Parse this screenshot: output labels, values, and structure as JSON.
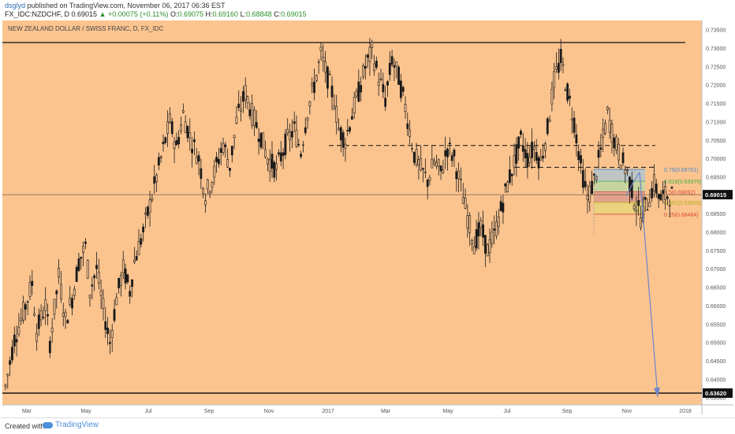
{
  "header": {
    "username": "dsglyd",
    "published_text": " published on TradingView.com, November 06, 2017 06:36 EST",
    "symbol": "FX_IDC:NZDCHF, D",
    "last": "0.69015",
    "change": "+0.00075 (+0.11%)",
    "open_label": "O:",
    "open": "0.69075",
    "high_label": "H:",
    "high": "0.69160",
    "low_label": "L:",
    "low": "0.68848",
    "close_label": "C:",
    "close": "0.69015"
  },
  "footer": {
    "created_label": "Created with",
    "brand": "TradingView"
  },
  "chart_data": {
    "type": "candlestick",
    "title": "NEW ZEALAND DOLLAR / SWISS FRANC, D, FX_IDC",
    "ylim": [
      0.633,
      0.7375
    ],
    "y_ticks": [
      "0.73500",
      "0.73000",
      "0.72500",
      "0.72000",
      "0.71500",
      "0.71000",
      "0.70500",
      "0.70000",
      "0.69500",
      "0.69000",
      "0.68500",
      "0.68000",
      "0.67500",
      "0.67000",
      "0.66500",
      "0.66000",
      "0.65500",
      "0.65000",
      "0.64500",
      "0.64000",
      "0.63500"
    ],
    "x_ticks": [
      "Mar",
      "May",
      "Jul",
      "Sep",
      "Nov",
      "2017",
      "Mar",
      "May",
      "Jul",
      "Sep",
      "Nov",
      "2018"
    ],
    "price_path": [
      [
        0,
        0.638
      ],
      [
        4,
        0.651
      ],
      [
        8,
        0.658
      ],
      [
        12,
        0.666
      ],
      [
        14,
        0.653
      ],
      [
        18,
        0.66
      ],
      [
        20,
        0.65
      ],
      [
        24,
        0.668
      ],
      [
        27,
        0.656
      ],
      [
        30,
        0.662
      ],
      [
        33,
        0.672
      ],
      [
        36,
        0.676
      ],
      [
        38,
        0.664
      ],
      [
        41,
        0.67
      ],
      [
        44,
        0.659
      ],
      [
        47,
        0.65
      ],
      [
        50,
        0.662
      ],
      [
        53,
        0.67
      ],
      [
        56,
        0.664
      ],
      [
        58,
        0.672
      ],
      [
        62,
        0.68
      ],
      [
        66,
        0.69
      ],
      [
        70,
        0.7
      ],
      [
        74,
        0.71
      ],
      [
        77,
        0.703
      ],
      [
        80,
        0.712
      ],
      [
        83,
        0.706
      ],
      [
        87,
        0.7
      ],
      [
        90,
        0.69
      ],
      [
        94,
        0.696
      ],
      [
        98,
        0.704
      ],
      [
        101,
        0.698
      ],
      [
        104,
        0.71
      ],
      [
        108,
        0.718
      ],
      [
        111,
        0.712
      ],
      [
        115,
        0.706
      ],
      [
        118,
        0.7
      ],
      [
        122,
        0.697
      ],
      [
        126,
        0.704
      ],
      [
        130,
        0.708
      ],
      [
        133,
        0.702
      ],
      [
        136,
        0.713
      ],
      [
        139,
        0.72
      ],
      [
        142,
        0.728
      ],
      [
        145,
        0.722
      ],
      [
        148,
        0.716
      ],
      [
        150,
        0.708
      ],
      [
        153,
        0.705
      ],
      [
        156,
        0.712
      ],
      [
        159,
        0.718
      ],
      [
        162,
        0.725
      ],
      [
        165,
        0.729
      ],
      [
        168,
        0.722
      ],
      [
        171,
        0.716
      ],
      [
        174,
        0.727
      ],
      [
        177,
        0.722
      ],
      [
        180,
        0.714
      ],
      [
        184,
        0.701
      ],
      [
        187,
        0.697
      ],
      [
        190,
        0.694
      ],
      [
        193,
        0.699
      ],
      [
        196,
        0.696
      ],
      [
        199,
        0.703
      ],
      [
        202,
        0.7
      ],
      [
        205,
        0.692
      ],
      [
        208,
        0.684
      ],
      [
        211,
        0.677
      ],
      [
        214,
        0.681
      ],
      [
        217,
        0.675
      ],
      [
        220,
        0.679
      ],
      [
        223,
        0.686
      ],
      [
        226,
        0.693
      ],
      [
        229,
        0.699
      ],
      [
        232,
        0.705
      ],
      [
        235,
        0.7
      ],
      [
        238,
        0.703
      ],
      [
        241,
        0.699
      ],
      [
        244,
        0.708
      ],
      [
        247,
        0.721
      ],
      [
        250,
        0.727
      ],
      [
        253,
        0.718
      ],
      [
        256,
        0.71
      ],
      [
        259,
        0.698
      ],
      [
        262,
        0.689
      ],
      [
        265,
        0.694
      ],
      [
        268,
        0.702
      ],
      [
        271,
        0.712
      ],
      [
        274,
        0.705
      ],
      [
        277,
        0.7
      ],
      [
        280,
        0.696
      ],
      [
        283,
        0.689
      ],
      [
        286,
        0.684
      ],
      [
        289,
        0.688
      ],
      [
        292,
        0.693
      ],
      [
        295,
        0.689
      ],
      [
        298,
        0.69
      ],
      [
        300,
        0.69
      ]
    ],
    "levels": [
      {
        "name": "top-line",
        "value": 0.7315
      },
      {
        "name": "bottom-line",
        "value": 0.6362
      }
    ],
    "dashed_levels": [
      0.7035,
      0.6976
    ],
    "fib": [
      {
        "ratio": "0.75",
        "value": 0.69701,
        "color": "#4a88c8"
      },
      {
        "ratio": "0.618",
        "value": 0.69379,
        "color": "#3fae4f"
      },
      {
        "ratio": "0.5",
        "value": 0.69092,
        "color": "#d9473b"
      },
      {
        "ratio": "0.382",
        "value": 0.68805,
        "color": "#b8b020"
      },
      {
        "ratio": "0.25",
        "value": 0.68484,
        "color": "#d9473b"
      }
    ],
    "current_price": "0.69015",
    "target_price": "0.63620",
    "colors": {
      "background": "#fbc48f",
      "candle": "#1a1a1a",
      "projection": "#6a86c9"
    }
  }
}
